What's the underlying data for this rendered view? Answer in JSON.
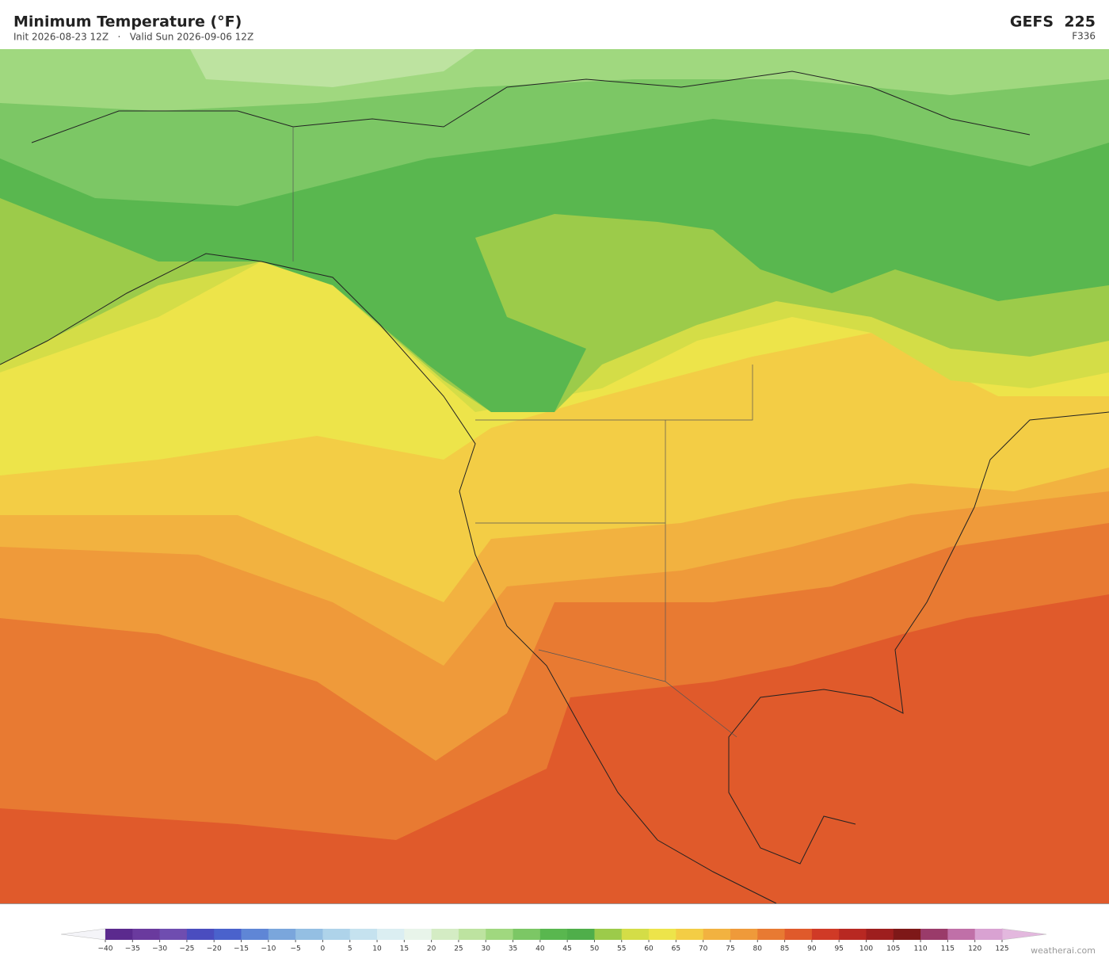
{
  "header": {
    "title": "Minimum Temperature  (°F)",
    "subtitle": "Init 2026-08-23 12Z   ·   Valid Sun 2026-09-06 12Z",
    "model": "GEFS  225",
    "forecast_hour": "F336"
  },
  "colorbar": {
    "lim": [
      -40,
      125
    ],
    "ticks": [
      {
        "value": -40,
        "label": "−40"
      },
      {
        "value": -35,
        "label": "−35"
      },
      {
        "value": -30,
        "label": "−30"
      },
      {
        "value": -25,
        "label": "−25"
      },
      {
        "value": -20,
        "label": "−20"
      },
      {
        "value": -15,
        "label": "−15"
      },
      {
        "value": -10,
        "label": "−10"
      },
      {
        "value": -5,
        "label": "−5"
      },
      0,
      5,
      10,
      15,
      20,
      25,
      30,
      35,
      40,
      45,
      50,
      55,
      60,
      65,
      70,
      75,
      80,
      85,
      90,
      95,
      100,
      105,
      110,
      115,
      120,
      125
    ],
    "colors": [
      "#5b2a8e",
      "#6a3a9e",
      "#6f4db0",
      "#4a4dbf",
      "#4a62cc",
      "#5f86d6",
      "#7aa6dc",
      "#94bfe3",
      "#aed3ea",
      "#c5e2ef",
      "#dbeef2",
      "#e8f4ea",
      "#d4ecc4",
      "#bde3a0",
      "#a0d87f",
      "#7cc765",
      "#59b74f",
      "#4fae4a",
      "#9ccb4a",
      "#d4dd47",
      "#ede44a",
      "#f3cd45",
      "#f2b240",
      "#ef9a3a",
      "#e87a32",
      "#e05a2b",
      "#d03a26",
      "#b82822",
      "#9e1e1e",
      "#7e1818",
      "#9a3b6a",
      "#c070a8",
      "#d9a2d2"
    ],
    "under_color": "#f4f4f8",
    "over_color": "#e3b8de"
  },
  "footer": {
    "credit": "weatherai.com"
  }
}
